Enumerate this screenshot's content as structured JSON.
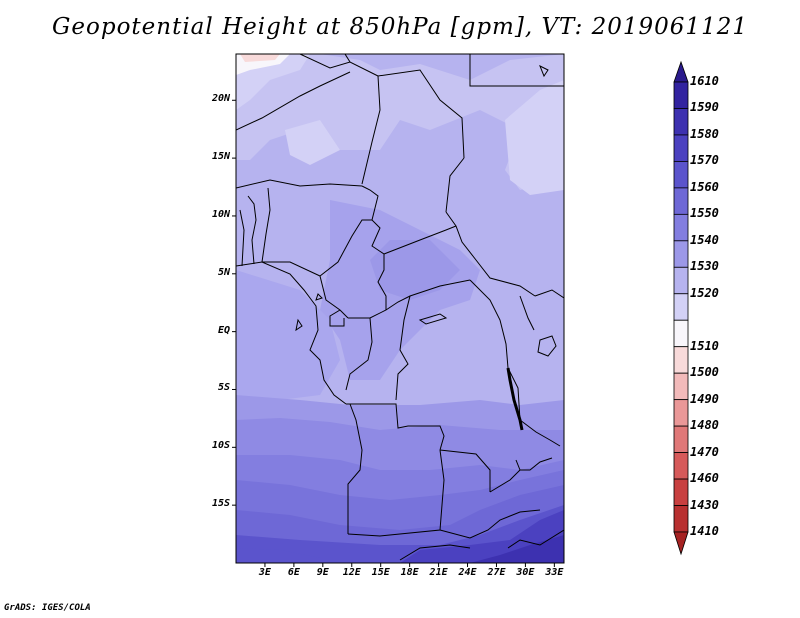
{
  "title": "Geopotential Height at 850hPa [gpm], VT: 2019061121",
  "credit": "GrADS: IGES/COLA",
  "map": {
    "variable": "geopotential height 850hPa",
    "units": "gpm",
    "lon_range": [
      0,
      34
    ],
    "lat_range": [
      -20,
      24
    ],
    "lat_ticks": [
      {
        "value": 20,
        "label": "20N"
      },
      {
        "value": 15,
        "label": "15N"
      },
      {
        "value": 10,
        "label": "10N"
      },
      {
        "value": 5,
        "label": "5N"
      },
      {
        "value": 0,
        "label": "EQ"
      },
      {
        "value": -5,
        "label": "5S"
      },
      {
        "value": -10,
        "label": "10S"
      },
      {
        "value": -15,
        "label": "15S"
      }
    ],
    "lon_ticks": [
      {
        "value": 3,
        "label": "3E"
      },
      {
        "value": 6,
        "label": "6E"
      },
      {
        "value": 9,
        "label": "9E"
      },
      {
        "value": 12,
        "label": "12E"
      },
      {
        "value": 15,
        "label": "15E"
      },
      {
        "value": 18,
        "label": "18E"
      },
      {
        "value": 21,
        "label": "21E"
      },
      {
        "value": 24,
        "label": "24E"
      },
      {
        "value": 27,
        "label": "27E"
      },
      {
        "value": 30,
        "label": "30E"
      },
      {
        "value": 33,
        "label": "33E"
      }
    ]
  },
  "colorbar": {
    "levels": [
      {
        "label": "1610",
        "color": "#2a1a8c"
      },
      {
        "label": "1590",
        "color": "#3223a0"
      },
      {
        "label": "1580",
        "color": "#3d31b0"
      },
      {
        "label": "1570",
        "color": "#4b41c0"
      },
      {
        "label": "1560",
        "color": "#5b54cc"
      },
      {
        "label": "1550",
        "color": "#6e68d6"
      },
      {
        "label": "1540",
        "color": "#837ee0"
      },
      {
        "label": "1530",
        "color": "#9c98e8"
      },
      {
        "label": "1520",
        "color": "#b6b3ef"
      },
      {
        "label": "",
        "color": "#d3d1f6"
      },
      {
        "label": "1510",
        "color": "#f8f6fb"
      },
      {
        "label": "1500",
        "color": "#f8dada"
      },
      {
        "label": "1490",
        "color": "#f2baba"
      },
      {
        "label": "1480",
        "color": "#ea9898"
      },
      {
        "label": "1470",
        "color": "#e07878"
      },
      {
        "label": "1460",
        "color": "#d65a5a"
      },
      {
        "label": "1430",
        "color": "#c84040"
      },
      {
        "label": "1410",
        "color": "#b83030"
      },
      {
        "label": "",
        "color": "#a52222"
      }
    ]
  }
}
